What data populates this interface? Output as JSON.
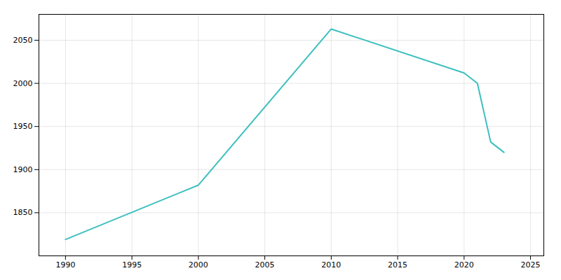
{
  "chart_data": {
    "type": "line",
    "x": [
      1990,
      2000,
      2010,
      2020,
      2021,
      2022,
      2023
    ],
    "values": [
      1819,
      1882,
      2063,
      2012,
      2000,
      1932,
      1920
    ],
    "color": "#3dbfbf",
    "xlim": [
      1988,
      2026
    ],
    "ylim": [
      1800,
      2080
    ],
    "xticks": [
      1990,
      1995,
      2000,
      2005,
      2010,
      2015,
      2020,
      2025
    ],
    "yticks": [
      1850,
      1900,
      1950,
      2000,
      2050
    ],
    "grid": true
  }
}
